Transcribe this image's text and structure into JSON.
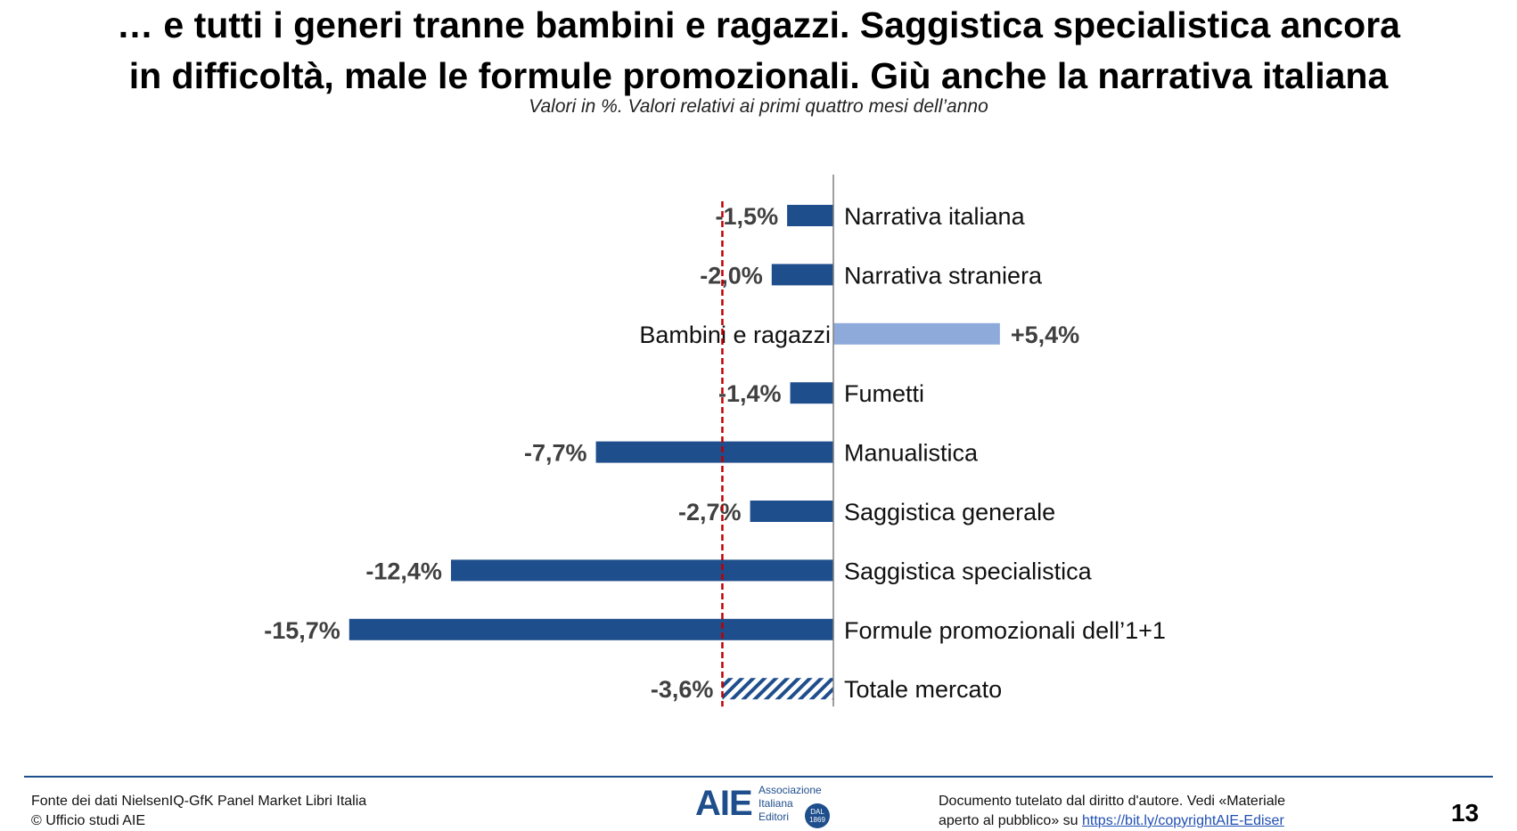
{
  "header": {
    "title_line1": "… e tutti i generi tranne bambini e ragazzi. Saggistica specialistica ancora",
    "title_line2": "in difficoltà, male le formule promozionali. Giù anche la narrativa italiana",
    "subtitle": "Valori in %. Valori relativi ai primi quattro mesi dell’anno"
  },
  "colors": {
    "negative_bar": "#1f4e8c",
    "positive_bar": "#8eaadb",
    "reference_line": "#c00000",
    "axis": "#7f7f7f"
  },
  "chart_data": {
    "type": "bar",
    "orientation": "horizontal",
    "title": "",
    "xlabel": "",
    "ylabel": "",
    "xlim": [
      -15.7,
      5.4
    ],
    "grid": false,
    "reference_line": {
      "value": -3.6,
      "style": "dashed",
      "label": "Totale mercato"
    },
    "categories": [
      "Narrativa italiana",
      "Narrativa straniera",
      "Bambini e ragazzi",
      "Fumetti",
      "Manualistica",
      "Saggistica generale",
      "Saggistica specialistica",
      "Formule promozionali dell’1+1",
      "Totale mercato"
    ],
    "values": [
      -1.5,
      -2.0,
      5.4,
      -1.4,
      -7.7,
      -2.7,
      -12.4,
      -15.7,
      -3.6
    ],
    "value_labels": [
      "-1,5%",
      "-2,0%",
      "+5,4%",
      "-1,4%",
      "-7,7%",
      "-2,7%",
      "-12,4%",
      "-15,7%",
      "-3,6%"
    ],
    "styles": [
      "solid",
      "solid",
      "light",
      "solid",
      "solid",
      "solid",
      "solid",
      "solid",
      "hatched"
    ]
  },
  "footer": {
    "source_line1": "Fonte dei dati NielsenIQ-GfK Panel Market Libri Italia",
    "source_line2": "© Ufficio studi AIE",
    "copyright_line1": "Documento tutelato dal diritto d'autore. Vedi «Materiale",
    "copyright_line2_prefix": "aperto al pubblico» su",
    "copyright_link": "https://bit.ly/copyrightAIE-Ediser",
    "page_number": "13"
  },
  "logo": {
    "mark": "AIE",
    "line1": "Associazione",
    "line2": "Italiana",
    "line3": "Editori",
    "badge_line1": "DAL",
    "badge_line2": "1869"
  }
}
